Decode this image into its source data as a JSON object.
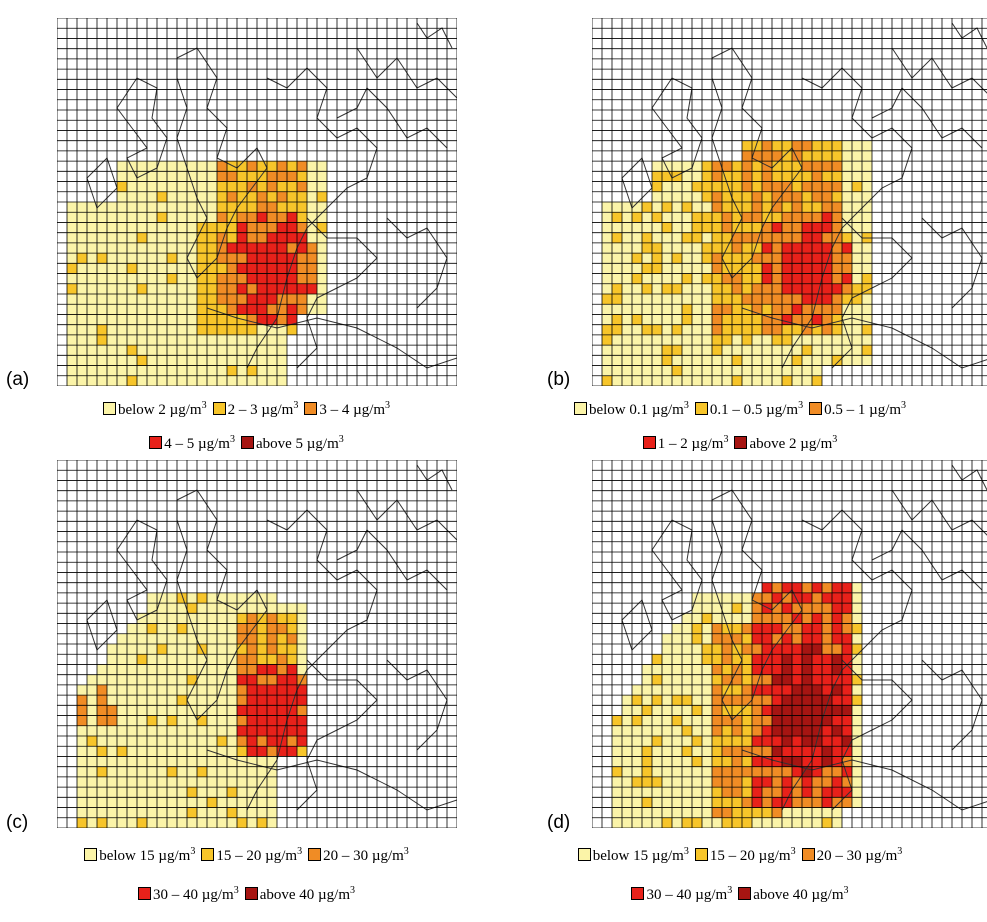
{
  "colors": {
    "c1": "#fbf4a8",
    "c2": "#f7c52a",
    "c3": "#f08c25",
    "c4": "#e8211a",
    "c5": "#a61512",
    "grid": "#000000",
    "coast": "#333333"
  },
  "panels": [
    {
      "id": "a",
      "label": "(a)",
      "legend_rows": [
        [
          {
            "cls": 1,
            "text": "below 2 µg/m"
          },
          {
            "cls": 2,
            "text": "2 – 3  µg/m"
          },
          {
            "cls": 3,
            "text": "3 – 4  µg/m"
          }
        ],
        [
          {
            "cls": 4,
            "text": "4 – 5  µg/m"
          },
          {
            "cls": 5,
            "text": "above 5 µg/m"
          }
        ]
      ]
    },
    {
      "id": "b",
      "label": "(b)",
      "legend_rows": [
        [
          {
            "cls": 1,
            "text": "below 0.1 µg/m"
          },
          {
            "cls": 2,
            "text": "0.1 – 0.5  µg/m"
          },
          {
            "cls": 3,
            "text": "0.5 – 1  µg/m"
          }
        ],
        [
          {
            "cls": 4,
            "text": "1 – 2  µg/m"
          },
          {
            "cls": 5,
            "text": "above 2 µg/m"
          }
        ]
      ]
    },
    {
      "id": "c",
      "label": "(c)",
      "legend_rows": [
        [
          {
            "cls": 1,
            "text": "below 15 µg/m"
          },
          {
            "cls": 2,
            "text": "15 – 20  µg/m"
          },
          {
            "cls": 3,
            "text": "20 – 30  µg/m"
          }
        ],
        [
          {
            "cls": 4,
            "text": "30 – 40  µg/m"
          },
          {
            "cls": 5,
            "text": "above 40 µg/m"
          }
        ]
      ]
    },
    {
      "id": "d",
      "label": "(d)",
      "legend_rows": [
        [
          {
            "cls": 1,
            "text": "below 15 µg/m"
          },
          {
            "cls": 2,
            "text": "15 – 20  µg/m"
          },
          {
            "cls": 3,
            "text": "20 – 30  µg/m"
          }
        ],
        [
          {
            "cls": 4,
            "text": "30 – 40  µg/m"
          },
          {
            "cls": 5,
            "text": "above 40 µg/m"
          }
        ]
      ]
    }
  ],
  "unit_superscript": "3"
}
